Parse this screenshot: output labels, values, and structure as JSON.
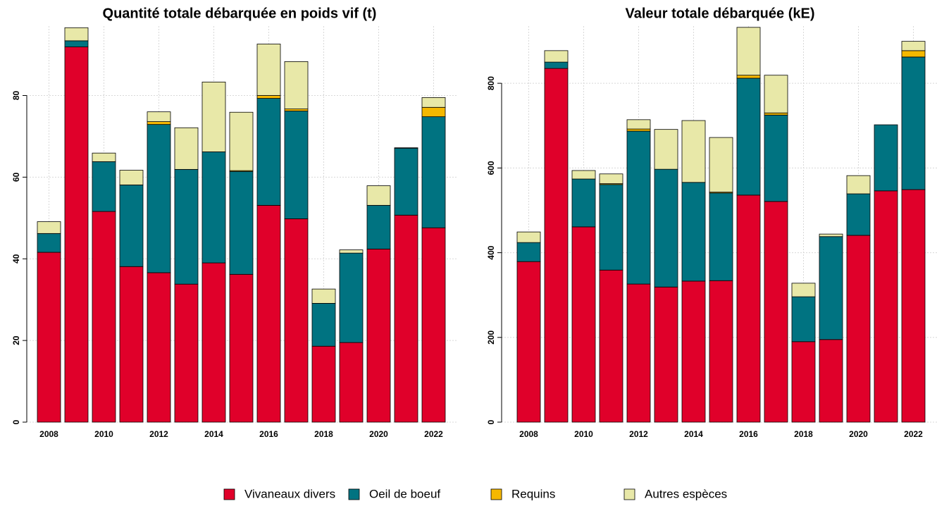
{
  "chart_data": [
    {
      "type": "stacked_bar",
      "title": "Quantité totale débarquée en poids vif (t)",
      "categories": [
        "2008",
        null,
        "2010",
        null,
        "2012",
        null,
        "2014",
        null,
        "2016",
        null,
        "2018",
        null,
        "2020",
        null,
        "2022"
      ],
      "series": [
        {
          "values": [
            41.6,
            91.9,
            51.6,
            38.1,
            36.6,
            33.8,
            39.0,
            36.2,
            53.1,
            49.8,
            18.6,
            19.5,
            42.4,
            50.7,
            47.6
          ]
        },
        {
          "values": [
            4.6,
            1.5,
            12.2,
            20.0,
            36.3,
            28.1,
            27.2,
            25.2,
            26.2,
            26.4,
            10.5,
            21.9,
            10.7,
            16.4,
            27.2
          ]
        },
        {
          "values": [
            0,
            0,
            0,
            0,
            0.7,
            0,
            0,
            0.2,
            0.7,
            0.5,
            0,
            0,
            0,
            0,
            2.3
          ]
        },
        {
          "values": [
            2.9,
            3.2,
            2.1,
            3.6,
            2.4,
            10.2,
            17.1,
            14.3,
            12.6,
            11.6,
            3.5,
            0.8,
            4.8,
            0.1,
            2.4
          ]
        }
      ],
      "ylim": [
        0,
        97
      ],
      "yticks": [
        0,
        20,
        40,
        60,
        80
      ],
      "grid": true
    },
    {
      "type": "stacked_bar",
      "title": "Valeur totale débarquée (kE)",
      "categories": [
        "2008",
        null,
        "2010",
        null,
        "2012",
        null,
        "2014",
        null,
        "2016",
        null,
        "2018",
        null,
        "2020",
        null,
        "2022"
      ],
      "series": [
        {
          "values": [
            379,
            835,
            461,
            359,
            326,
            319,
            333,
            334,
            536,
            521,
            190,
            195,
            441,
            546,
            549
          ]
        },
        {
          "values": [
            45,
            15,
            113,
            202,
            361,
            278,
            233,
            207,
            276,
            204,
            106,
            243,
            98,
            156,
            313
          ]
        },
        {
          "values": [
            0,
            0,
            0,
            2,
            5,
            0,
            0,
            2,
            7,
            5,
            0,
            0,
            0,
            0,
            15
          ]
        },
        {
          "values": [
            25,
            27,
            20,
            23,
            22,
            94,
            146,
            129,
            113,
            89,
            32,
            6,
            43,
            0,
            22
          ]
        }
      ],
      "ylim": [
        0,
        935
      ],
      "yticks": [
        0,
        200,
        400,
        600,
        800
      ],
      "grid": true
    }
  ],
  "legend": {
    "items": [
      {
        "name": "Vivaneaux divers",
        "color": "#e0002a"
      },
      {
        "name": "Oeil de boeuf",
        "color": "#007381"
      },
      {
        "name": "Requins",
        "color": "#f5b800"
      },
      {
        "name": "Autres espèces",
        "color": "#e8e8a8"
      }
    ]
  }
}
